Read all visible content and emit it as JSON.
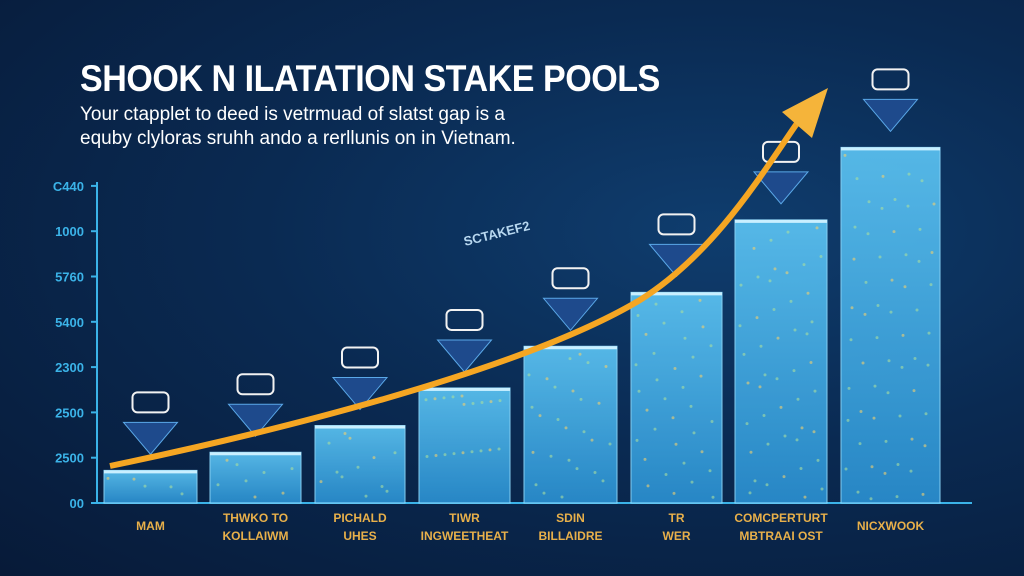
{
  "chart_data": {
    "type": "bar",
    "title": "SHOOK N ILATATION STAKE POOLS",
    "subtitle": [
      "Your ctapplet to deed is vetrmuad of slatst gap is a",
      "equby clyloras sruhh ando a rerllunis on in Vietnam."
    ],
    "categories": [
      [
        "MAM"
      ],
      [
        "THWKO TO",
        "KOLLAIWM"
      ],
      [
        "PICHALD",
        "UHES"
      ],
      [
        "TIWR",
        "INGWEETHEAT"
      ],
      [
        "SDIN",
        "BILLAIDRE"
      ],
      [
        "TR",
        "WER"
      ],
      [
        "COMCPERTURT",
        "MBTRAAI OST"
      ],
      [
        "NICXWOOK"
      ]
    ],
    "values": [
      0.72,
      1.12,
      1.71,
      2.54,
      3.46,
      4.65,
      6.25,
      7.85
    ],
    "yticks": [
      "00",
      "2500",
      "2500",
      "2300",
      "5400",
      "5760",
      "1000",
      "C440"
    ],
    "ylim": [
      0,
      8
    ],
    "annotation": "SCTAKEF2",
    "trend_arrow": true,
    "colors": {
      "bar": "#3fa6e0",
      "axis": "#3bb3e8",
      "label": "#e8b04a",
      "arrow": "#f5a623"
    }
  }
}
